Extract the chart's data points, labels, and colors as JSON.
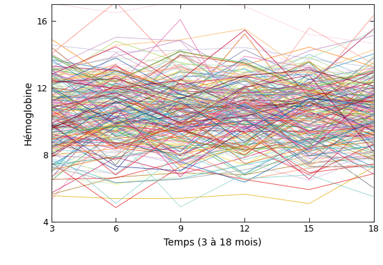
{
  "xlabel": "Temps (3 à 18 mois)",
  "ylabel": "Hémoglobine",
  "x_ticks": [
    3,
    6,
    9,
    12,
    15,
    18
  ],
  "xlim": [
    3,
    18
  ],
  "ylim": [
    4,
    17
  ],
  "y_ticks": [
    4,
    8,
    12,
    16
  ],
  "n_subjects": 220,
  "time_points": [
    3,
    6,
    9,
    12,
    15,
    18
  ],
  "seed": 12345,
  "background_color": "#ffffff",
  "line_alpha": 0.75,
  "line_width": 0.7,
  "mean_hb": 10.5,
  "sd_subject": 1.6,
  "sd_within": 1.2,
  "color_palette": [
    "#e41a1c",
    "#377eb8",
    "#4daf4a",
    "#984ea3",
    "#ff7f00",
    "#a65628",
    "#f781bf",
    "#999999",
    "#66c2a5",
    "#fc8d62",
    "#8da0cb",
    "#e78ac3",
    "#a6d854",
    "#ffd92f",
    "#e5c494",
    "#b3b3b3",
    "#8dd3c7",
    "#bebada",
    "#fb8072",
    "#80b1d3",
    "#fdb462",
    "#b3de69",
    "#fccde5",
    "#d9d9d9",
    "#bc80bd",
    "#ccebc5",
    "#ffed6f",
    "#1b9e77",
    "#d95f02",
    "#7570b3",
    "#e7298a",
    "#66a61e",
    "#e6ab02",
    "#a6761d",
    "#666666",
    "#a6cee3",
    "#1f78b4",
    "#b2df8a",
    "#33a02c",
    "#fb9a99",
    "#e31a1c",
    "#fdbf6f",
    "#cab2d6",
    "#6a3d9a",
    "#ffff99",
    "#b15928",
    "#c7e9b4",
    "#41b6c4",
    "#225ea8",
    "#a1dab4",
    "#253494",
    "#fd8d3c",
    "#bd0026",
    "#800026",
    "#feb24c",
    "#f03b20",
    "#43a2ca",
    "#0868ac",
    "#e0f3db",
    "#a8ddb5",
    "#7bccc4",
    "#4eb3d3",
    "#2b8cbe",
    "#08589e",
    "#c994c7",
    "#df65b0",
    "#e7298a",
    "#ce1256",
    "#980043",
    "#67001f",
    "#d4b9da",
    "#c994c7",
    "#df65b0"
  ]
}
